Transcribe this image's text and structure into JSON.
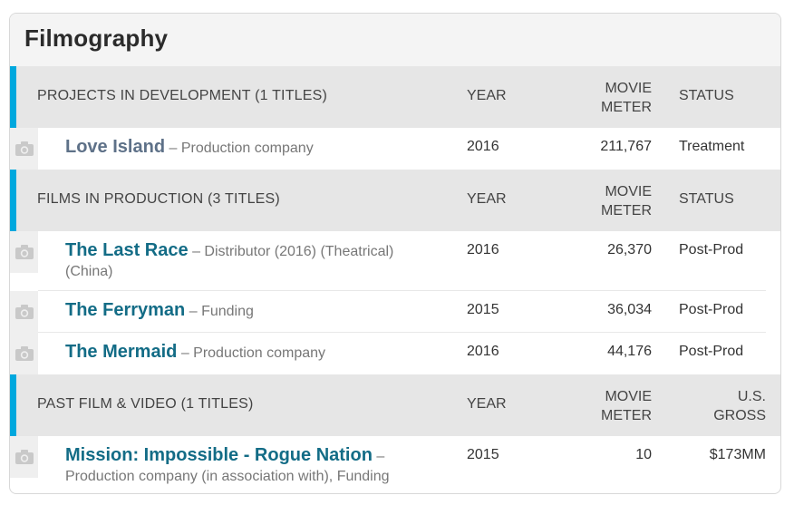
{
  "panel": {
    "title": "Filmography"
  },
  "icons": {
    "thumbnail": "camera-icon"
  },
  "colors": {
    "accent_bar": "#00a8de",
    "link_teal": "#136c86",
    "link_muted": "#5e7188"
  },
  "sections": [
    {
      "title": "PROJECTS IN DEVELOPMENT (1 TITLES)",
      "col_year": "YEAR",
      "col_meter": "MOVIE\nMETER",
      "col_last": "STATUS",
      "rows": [
        {
          "title": "Love Island",
          "desc": "– Production company",
          "year": "2016",
          "meter": "211,767",
          "last": "Treatment"
        }
      ]
    },
    {
      "title": "FILMS IN PRODUCTION (3 TITLES)",
      "col_year": "YEAR",
      "col_meter": "MOVIE\nMETER",
      "col_last": "STATUS",
      "rows": [
        {
          "title": "The Last Race",
          "desc": "– Distributor (2016) (Theatrical) (China)",
          "year": "2016",
          "meter": "26,370",
          "last": "Post-Prod"
        },
        {
          "title": "The Ferryman",
          "desc": "– Funding",
          "year": "2015",
          "meter": "36,034",
          "last": "Post-Prod"
        },
        {
          "title": "The Mermaid",
          "desc": "– Production company",
          "year": "2016",
          "meter": "44,176",
          "last": "Post-Prod"
        }
      ]
    },
    {
      "title": "PAST FILM & VIDEO (1 TITLES)",
      "col_year": "YEAR",
      "col_meter": "MOVIE\nMETER",
      "col_last": "U.S.\nGROSS",
      "rows": [
        {
          "title": "Mission: Impossible - Rogue Nation",
          "desc": "– Production company (in association with), Funding",
          "year": "2015",
          "meter": "10",
          "last": "$173MM"
        }
      ]
    }
  ]
}
